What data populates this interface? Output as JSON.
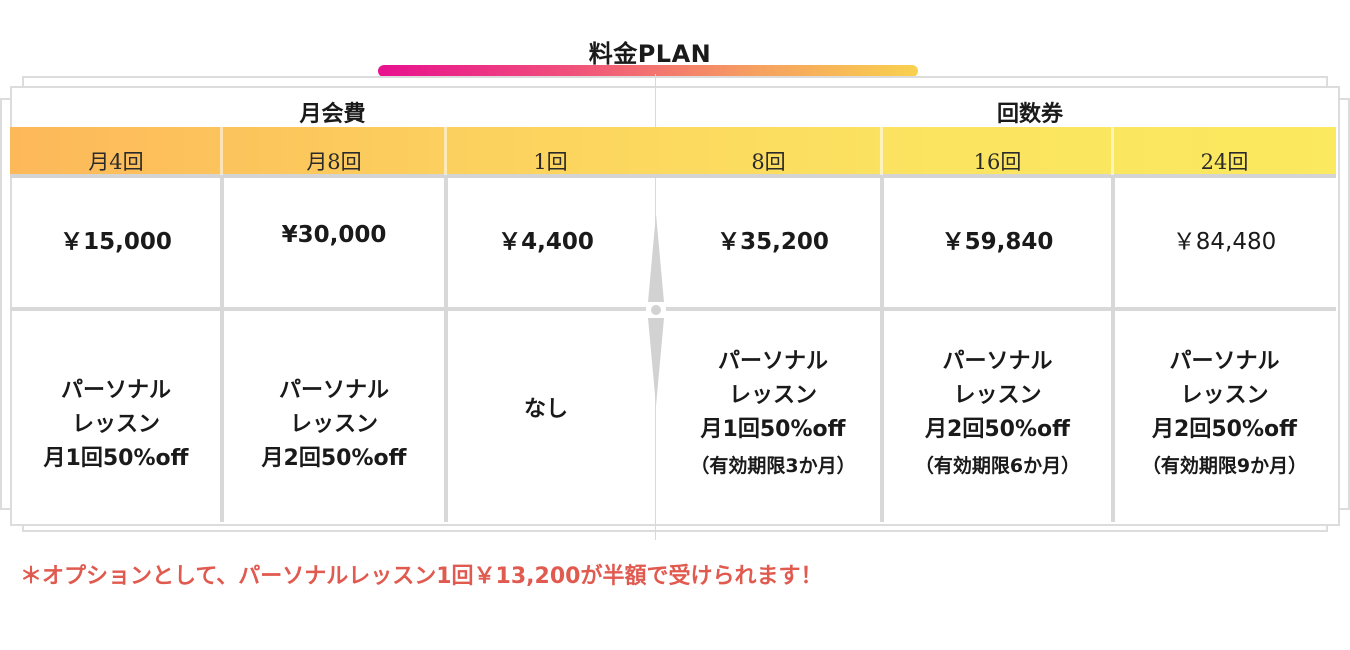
{
  "title": "料金PLAN",
  "groups": {
    "monthly": "月会費",
    "tickets": "回数券"
  },
  "columns": [
    {
      "label": "月4回",
      "price": "￥15,000",
      "benefit": [
        "パーソナル",
        "レッスン",
        "月1回50%off"
      ],
      "period": ""
    },
    {
      "label": "月8回",
      "price": "¥30,000",
      "benefit": [
        "パーソナル",
        "レッスン",
        "月2回50%off"
      ],
      "period": ""
    },
    {
      "label": "1回",
      "price": "￥4,400",
      "benefit": [
        "なし"
      ],
      "period": ""
    },
    {
      "label": "8回",
      "price": "￥35,200",
      "benefit": [
        "パーソナル",
        "レッスン",
        "月1回50%off"
      ],
      "period": "（有効期限3か月）"
    },
    {
      "label": "16回",
      "price": "￥59,840",
      "benefit": [
        "パーソナル",
        "レッスン",
        "月2回50%off"
      ],
      "period": "（有効期限6か月）"
    },
    {
      "label": "24回",
      "price": "￥84,480",
      "benefit": [
        "パーソナル",
        "レッスン",
        "月2回50%off"
      ],
      "period": "（有効期限9か月）"
    }
  ],
  "note": "＊オプションとして、パーソナルレッスン1回￥13,200が半額で受けられます！",
  "colors": {
    "gradient_start": "#e8108f",
    "gradient_end": "#f9d14f",
    "header_band_start": "#fdb85a",
    "header_band_end": "#fbe95f",
    "note": "#e05a50",
    "grid": "#d8d8d8"
  }
}
